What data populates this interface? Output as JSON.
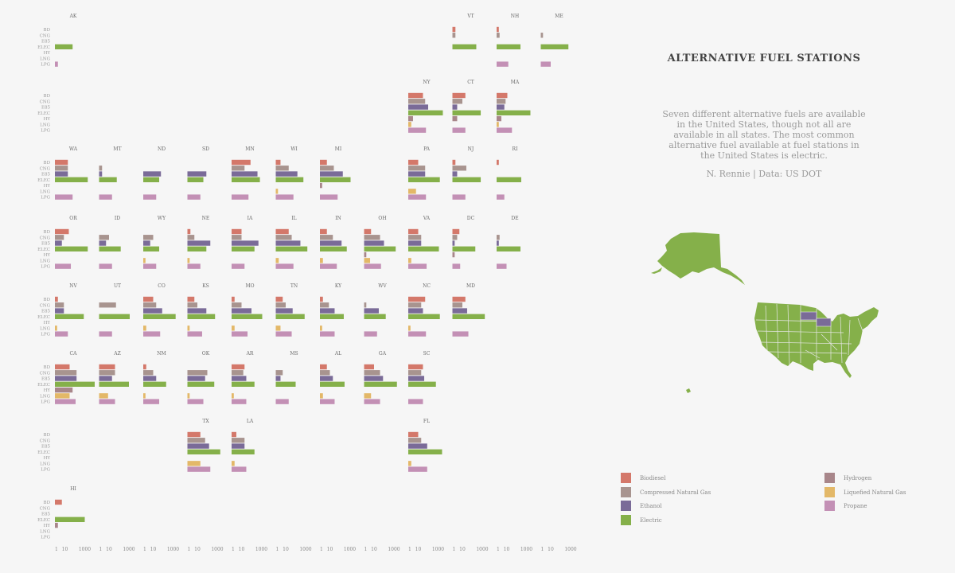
{
  "title": "ALTERNATIVE FUEL STATIONS",
  "subtitle_lines": [
    "Seven different alternative fuels are available",
    "in the United States, though not all are",
    "available in all states. The most common",
    "alternative fuel available at fuel stations in",
    "the United States is electric."
  ],
  "credit": "N. Rennie | Data: US DOT",
  "colors": {
    "BD": "#d4786a",
    "CNG": "#a8948f",
    "E85": "#7a6b98",
    "ELEC": "#85b04a",
    "HY": "#a8868a",
    "LNG": "#e3b868",
    "LPG": "#c390b5",
    "map": "#85b04a",
    "map_border": "#e8e8e8",
    "map_highlight": "#7a6b98"
  },
  "legend": [
    {
      "key": "BD",
      "label": "Biodiesel"
    },
    {
      "key": "CNG",
      "label": "Compressed Natural Gas"
    },
    {
      "key": "E85",
      "label": "Ethanol"
    },
    {
      "key": "ELEC",
      "label": "Electric"
    },
    {
      "key": "HY",
      "label": "Hydrogen"
    },
    {
      "key": "LNG",
      "label": "Liquefied Natural Gas"
    },
    {
      "key": "LPG",
      "label": "Propane"
    }
  ],
  "chart_data": {
    "type": "bar",
    "orientation": "horizontal",
    "layout": "small multiples arranged as US tile grid map",
    "categories": [
      "BD",
      "CNG",
      "E85",
      "ELEC",
      "HY",
      "LNG",
      "LPG"
    ],
    "x_scale": "log",
    "x_ticks": [
      "1",
      "10",
      "1000"
    ],
    "states": [
      {
        "state": "AK",
        "row": 0,
        "col": 0,
        "values": [
          0,
          0,
          0,
          60,
          0,
          0,
          2
        ]
      },
      {
        "state": "VT",
        "row": 0,
        "col": 9,
        "values": [
          2,
          2,
          0,
          250,
          0,
          0,
          0
        ]
      },
      {
        "state": "NH",
        "row": 0,
        "col": 10,
        "values": [
          1.5,
          2,
          0,
          250,
          0,
          0,
          15
        ]
      },
      {
        "state": "ME",
        "row": 0,
        "col": 11,
        "values": [
          0,
          1.5,
          0,
          600,
          0,
          0,
          10
        ]
      },
      {
        "state": "NY",
        "row": 1,
        "col": 8,
        "values": [
          30,
          50,
          100,
          3000,
          3,
          2,
          60
        ]
      },
      {
        "state": "CT",
        "row": 1,
        "col": 9,
        "values": [
          20,
          10,
          3,
          700,
          3,
          0,
          20
        ]
      },
      {
        "state": "MA",
        "row": 1,
        "col": 10,
        "values": [
          12,
          8,
          6,
          2500,
          3,
          1,
          35
        ]
      },
      {
        "state": "WA",
        "row": 2,
        "col": 0,
        "values": [
          20,
          20,
          20,
          2000,
          0,
          0,
          60
        ]
      },
      {
        "state": "MT",
        "row": 2,
        "col": 1,
        "values": [
          0,
          2,
          2,
          60,
          0,
          0,
          20
        ]
      },
      {
        "state": "ND",
        "row": 2,
        "col": 2,
        "values": [
          0,
          0,
          60,
          40,
          0,
          0,
          20
        ]
      },
      {
        "state": "SD",
        "row": 2,
        "col": 3,
        "values": [
          0,
          0,
          80,
          40,
          0,
          0,
          20
        ]
      },
      {
        "state": "MN",
        "row": 2,
        "col": 4,
        "values": [
          80,
          20,
          400,
          700,
          0,
          0,
          50
        ]
      },
      {
        "state": "WI",
        "row": 2,
        "col": 5,
        "values": [
          3,
          20,
          150,
          600,
          0,
          1.5,
          60
        ]
      },
      {
        "state": "MI",
        "row": 2,
        "col": 6,
        "values": [
          5,
          25,
          200,
          1200,
          1.5,
          0,
          60
        ]
      },
      {
        "state": "PA",
        "row": 2,
        "col": 8,
        "values": [
          10,
          50,
          50,
          1500,
          0,
          6,
          60
        ]
      },
      {
        "state": "NJ",
        "row": 2,
        "col": 9,
        "values": [
          2,
          25,
          3,
          700,
          0,
          0,
          20
        ]
      },
      {
        "state": "RI",
        "row": 2,
        "col": 10,
        "values": [
          1.5,
          0,
          0,
          300,
          0,
          0,
          6
        ]
      },
      {
        "state": "OR",
        "row": 3,
        "col": 0,
        "values": [
          25,
          8,
          5,
          2000,
          0,
          0,
          40
        ]
      },
      {
        "state": "ID",
        "row": 3,
        "col": 1,
        "values": [
          0,
          10,
          5,
          150,
          0,
          0,
          20
        ]
      },
      {
        "state": "WY",
        "row": 3,
        "col": 2,
        "values": [
          0,
          10,
          5,
          40,
          0,
          1.5,
          20
        ]
      },
      {
        "state": "NE",
        "row": 3,
        "col": 3,
        "values": [
          2,
          5,
          200,
          80,
          0,
          1.5,
          20
        ]
      },
      {
        "state": "IA",
        "row": 3,
        "col": 4,
        "values": [
          10,
          10,
          500,
          200,
          0,
          0,
          20
        ]
      },
      {
        "state": "IL",
        "row": 3,
        "col": 5,
        "values": [
          20,
          40,
          300,
          1500,
          0,
          2,
          60
        ]
      },
      {
        "state": "IN",
        "row": 3,
        "col": 6,
        "values": [
          5,
          20,
          150,
          500,
          0,
          2,
          50
        ]
      },
      {
        "state": "OH",
        "row": 3,
        "col": 7,
        "values": [
          5,
          40,
          100,
          1500,
          1.5,
          4,
          50
        ]
      },
      {
        "state": "VA",
        "row": 3,
        "col": 8,
        "values": [
          10,
          20,
          20,
          1200,
          0,
          2,
          70
        ]
      },
      {
        "state": "DC",
        "row": 3,
        "col": 9,
        "values": [
          5,
          3,
          1.5,
          200,
          1.5,
          0,
          6
        ]
      },
      {
        "state": "DE",
        "row": 3,
        "col": 10,
        "values": [
          0,
          2,
          1.5,
          250,
          0,
          0,
          10
        ]
      },
      {
        "state": "NV",
        "row": 4,
        "col": 0,
        "values": [
          2,
          8,
          8,
          800,
          0,
          1.5,
          20
        ]
      },
      {
        "state": "UT",
        "row": 4,
        "col": 1,
        "values": [
          0,
          50,
          0,
          1200,
          0,
          0,
          20
        ]
      },
      {
        "state": "CO",
        "row": 4,
        "col": 2,
        "values": [
          10,
          20,
          80,
          1800,
          0,
          2,
          50
        ]
      },
      {
        "state": "KS",
        "row": 4,
        "col": 3,
        "values": [
          5,
          10,
          80,
          600,
          0,
          1.5,
          30
        ]
      },
      {
        "state": "MO",
        "row": 4,
        "col": 4,
        "values": [
          2,
          10,
          100,
          1200,
          0,
          2,
          40
        ]
      },
      {
        "state": "TN",
        "row": 4,
        "col": 5,
        "values": [
          5,
          10,
          50,
          800,
          0,
          3,
          40
        ]
      },
      {
        "state": "KY",
        "row": 4,
        "col": 6,
        "values": [
          2,
          8,
          30,
          250,
          0,
          1.5,
          30
        ]
      },
      {
        "state": "WV",
        "row": 4,
        "col": 7,
        "values": [
          0,
          1.5,
          30,
          150,
          0,
          0,
          20
        ]
      },
      {
        "state": "NC",
        "row": 4,
        "col": 8,
        "values": [
          50,
          20,
          30,
          1500,
          0,
          1.5,
          60
        ]
      },
      {
        "state": "MD",
        "row": 4,
        "col": 9,
        "values": [
          20,
          10,
          30,
          1800,
          0,
          0,
          40
        ]
      },
      {
        "state": "CA",
        "row": 5,
        "col": 0,
        "values": [
          30,
          150,
          150,
          10000,
          60,
          30,
          120
        ]
      },
      {
        "state": "AZ",
        "row": 5,
        "col": 1,
        "values": [
          40,
          40,
          20,
          1000,
          0,
          8,
          40
        ]
      },
      {
        "state": "NM",
        "row": 5,
        "col": 2,
        "values": [
          2,
          10,
          20,
          200,
          0,
          1.5,
          40
        ]
      },
      {
        "state": "OK",
        "row": 5,
        "col": 3,
        "values": [
          0,
          100,
          60,
          500,
          0,
          1.5,
          40
        ]
      },
      {
        "state": "AR",
        "row": 5,
        "col": 4,
        "values": [
          20,
          15,
          30,
          200,
          0,
          1.5,
          30
        ]
      },
      {
        "state": "MS",
        "row": 5,
        "col": 5,
        "values": [
          0,
          5,
          3,
          100,
          0,
          0,
          20
        ]
      },
      {
        "state": "AL",
        "row": 5,
        "col": 6,
        "values": [
          5,
          10,
          20,
          300,
          0,
          2,
          30
        ]
      },
      {
        "state": "GA",
        "row": 5,
        "col": 7,
        "values": [
          10,
          40,
          80,
          2000,
          0,
          5,
          40
        ]
      },
      {
        "state": "SC",
        "row": 5,
        "col": 8,
        "values": [
          30,
          20,
          40,
          600,
          0,
          0,
          30
        ]
      },
      {
        "state": "TX",
        "row": 6,
        "col": 3,
        "values": [
          20,
          60,
          150,
          2000,
          0,
          20,
          200
        ]
      },
      {
        "state": "LA",
        "row": 6,
        "col": 4,
        "values": [
          3,
          20,
          20,
          200,
          0,
          2,
          30
        ]
      },
      {
        "state": "FL",
        "row": 6,
        "col": 8,
        "values": [
          10,
          20,
          80,
          2500,
          0,
          2,
          80
        ]
      },
      {
        "state": "HI",
        "row": 7,
        "col": 0,
        "values": [
          5,
          0,
          0,
          1000,
          2,
          0,
          0
        ]
      }
    ]
  }
}
